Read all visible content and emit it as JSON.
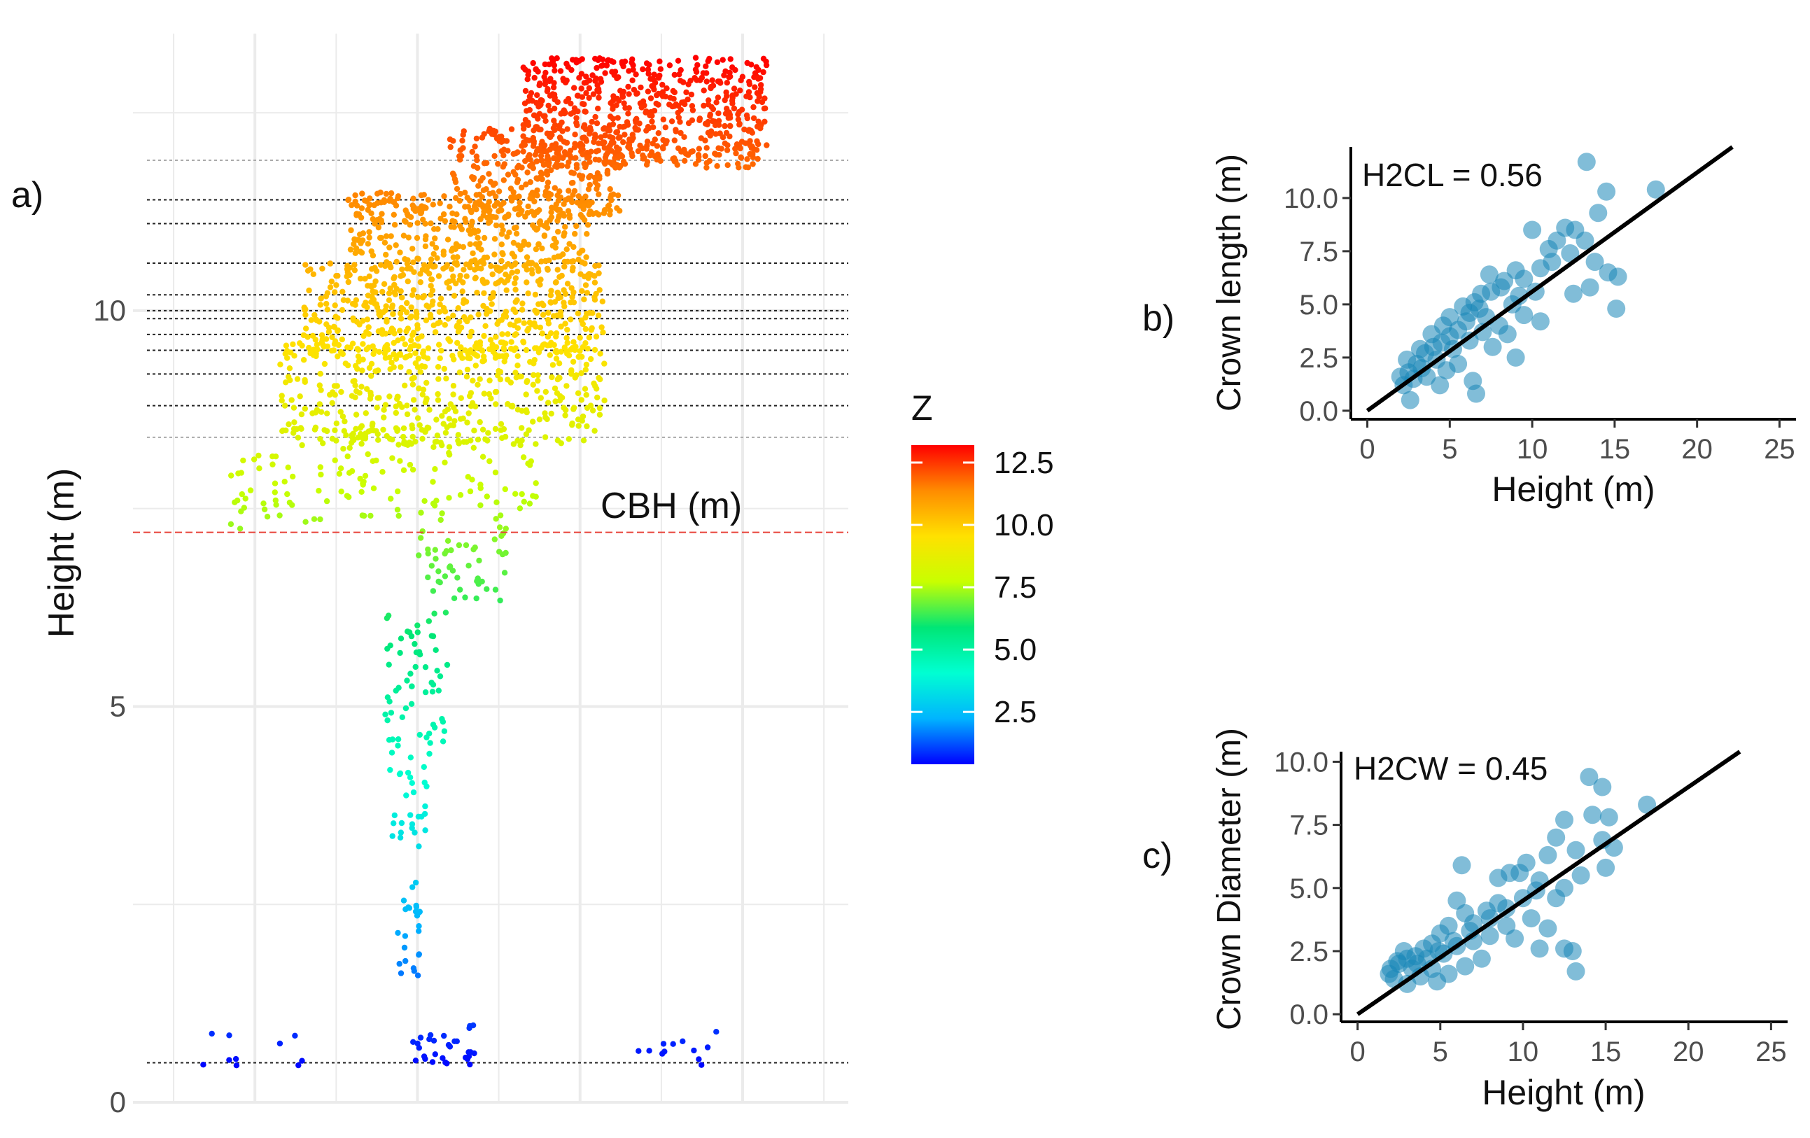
{
  "figure": {
    "panel_labels": {
      "a": "a)",
      "b": "b)",
      "c": "c)"
    }
  },
  "chart_data": [
    {
      "panel": "a",
      "type": "scatter",
      "ylabel": "Height (m)",
      "xlabel": "",
      "ylim": [
        0,
        13.5
      ],
      "yticks": [
        0,
        5,
        10
      ],
      "ytick_labels": [
        "0",
        "5",
        "10"
      ],
      "grid": true,
      "annotation": "CBH (m)",
      "cbh_line": 7.2,
      "layer_lines": [
        0.5,
        8.4,
        8.8,
        9.2,
        9.5,
        9.7,
        9.9,
        10.0,
        10.2,
        10.6,
        11.1,
        11.4,
        11.9
      ],
      "colorbar": {
        "title": "Z",
        "ticks": [
          2.5,
          5.0,
          7.5,
          10.0,
          12.5
        ],
        "tick_labels": [
          "2.5",
          "5.0",
          "7.5",
          "10.0",
          "12.5"
        ],
        "range": [
          0.4,
          13.2
        ],
        "colors": [
          "#0000ff",
          "#00b4ff",
          "#00ffd2",
          "#00e676",
          "#c8ff00",
          "#ffe100",
          "#ff8c00",
          "#ff0000"
        ]
      },
      "point_clusters": [
        {
          "x": [
            0.85,
            2.1
          ],
          "y": [
            0.45,
            0.95
          ],
          "n": 10,
          "note": "ground"
        },
        {
          "x": [
            3.4,
            4.2
          ],
          "y": [
            0.45,
            1.0
          ],
          "n": 30
        },
        {
          "x": [
            6.2,
            7.3
          ],
          "y": [
            0.45,
            0.9
          ],
          "n": 12
        },
        {
          "x": [
            3.25,
            3.55
          ],
          "y": [
            1.6,
            2.8
          ],
          "n": 25
        },
        {
          "x": [
            3.15,
            3.65
          ],
          "y": [
            3.2,
            4.5
          ],
          "n": 30
        },
        {
          "x": [
            3.1,
            3.9
          ],
          "y": [
            4.5,
            6.2
          ],
          "n": 60
        },
        {
          "x": [
            3.5,
            4.6
          ],
          "y": [
            6.3,
            7.4
          ],
          "n": 50
        },
        {
          "x": [
            1.2,
            2.9
          ],
          "y": [
            7.2,
            8.2
          ],
          "n": 50
        },
        {
          "x": [
            2.3,
            5.0
          ],
          "y": [
            7.4,
            8.6
          ],
          "n": 90
        },
        {
          "x": [
            1.8,
            5.8
          ],
          "y": [
            8.3,
            9.6
          ],
          "n": 420
        },
        {
          "x": [
            2.1,
            5.8
          ],
          "y": [
            9.4,
            10.6
          ],
          "n": 480
        },
        {
          "x": [
            2.6,
            5.6
          ],
          "y": [
            10.5,
            11.5
          ],
          "n": 360
        },
        {
          "x": [
            3.9,
            6.0
          ],
          "y": [
            11.2,
            12.3
          ],
          "n": 280
        },
        {
          "x": [
            4.8,
            7.8
          ],
          "y": [
            11.8,
            13.2
          ],
          "n": 620
        }
      ]
    },
    {
      "panel": "b",
      "type": "scatter",
      "xlabel": "Height (m)",
      "ylabel": "Crown length (m)",
      "annotation": "H2CL = 0.56",
      "slope": 0.56,
      "xlim": [
        -1,
        26
      ],
      "ylim": [
        -0.4,
        12.4
      ],
      "xticks": [
        0,
        5,
        10,
        15,
        20,
        25
      ],
      "xtick_labels": [
        "0",
        "5",
        "10",
        "15",
        "20",
        "25"
      ],
      "yticks": [
        0.0,
        2.5,
        5.0,
        7.5,
        10.0
      ],
      "ytick_labels": [
        "0.0",
        "2.5",
        "5.0",
        "7.5",
        "10.0"
      ],
      "points": [
        [
          13.3,
          11.7
        ],
        [
          14.5,
          10.3
        ],
        [
          17.5,
          10.4
        ],
        [
          14.0,
          9.3
        ],
        [
          10.0,
          8.5
        ],
        [
          12.0,
          8.6
        ],
        [
          12.6,
          8.5
        ],
        [
          13.2,
          8.0
        ],
        [
          11.5,
          8.0
        ],
        [
          13.8,
          7.0
        ],
        [
          14.6,
          6.5
        ],
        [
          15.2,
          6.3
        ],
        [
          12.3,
          7.4
        ],
        [
          11.0,
          7.6
        ],
        [
          9.0,
          6.6
        ],
        [
          8.3,
          6.1
        ],
        [
          9.5,
          6.2
        ],
        [
          10.5,
          6.7
        ],
        [
          12.5,
          5.5
        ],
        [
          13.5,
          5.8
        ],
        [
          15.1,
          4.8
        ],
        [
          10.5,
          4.2
        ],
        [
          9.5,
          4.5
        ],
        [
          9.0,
          2.5
        ],
        [
          8.5,
          3.6
        ],
        [
          7.5,
          5.6
        ],
        [
          6.8,
          4.8
        ],
        [
          6.5,
          5.1
        ],
        [
          7.2,
          4.4
        ],
        [
          6.0,
          4.2
        ],
        [
          5.5,
          3.8
        ],
        [
          5.0,
          3.5
        ],
        [
          4.5,
          3.2
        ],
        [
          4.0,
          3.0
        ],
        [
          3.5,
          2.7
        ],
        [
          3.0,
          2.2
        ],
        [
          2.5,
          1.8
        ],
        [
          2.2,
          1.2
        ],
        [
          2.8,
          1.5
        ],
        [
          3.3,
          2.0
        ],
        [
          4.2,
          2.4
        ],
        [
          5.2,
          2.9
        ],
        [
          6.2,
          3.3
        ],
        [
          7.0,
          3.7
        ],
        [
          8.0,
          4.0
        ],
        [
          4.8,
          1.9
        ],
        [
          3.6,
          1.6
        ],
        [
          2.6,
          0.5
        ],
        [
          6.4,
          1.4
        ],
        [
          6.6,
          0.8
        ],
        [
          5.5,
          2.2
        ],
        [
          7.6,
          3.0
        ],
        [
          8.8,
          5.0
        ],
        [
          9.2,
          5.4
        ],
        [
          7.4,
          6.4
        ],
        [
          6.2,
          4.6
        ],
        [
          5.8,
          4.9
        ],
        [
          4.6,
          4.0
        ],
        [
          3.9,
          3.6
        ],
        [
          3.2,
          2.9
        ],
        [
          2.4,
          2.4
        ],
        [
          2.0,
          1.6
        ],
        [
          4.4,
          1.2
        ],
        [
          5.0,
          4.4
        ],
        [
          6.9,
          5.5
        ],
        [
          8.1,
          5.8
        ],
        [
          11.2,
          7.0
        ],
        [
          10.2,
          5.6
        ]
      ]
    },
    {
      "panel": "c",
      "type": "scatter",
      "xlabel": "Height (m)",
      "ylabel": "Crown Diameter (m)",
      "annotation": "H2CW = 0.45",
      "slope": 0.45,
      "xlim": [
        -1,
        26
      ],
      "ylim": [
        -0.3,
        10.4
      ],
      "xticks": [
        0,
        5,
        10,
        15,
        20,
        25
      ],
      "xtick_labels": [
        "0",
        "5",
        "10",
        "15",
        "20",
        "25"
      ],
      "yticks": [
        0.0,
        2.5,
        5.0,
        7.5,
        10.0
      ],
      "ytick_labels": [
        "0.0",
        "2.5",
        "5.0",
        "7.5",
        "10.0"
      ],
      "points": [
        [
          14.0,
          9.4
        ],
        [
          14.8,
          9.0
        ],
        [
          14.2,
          7.9
        ],
        [
          15.2,
          7.8
        ],
        [
          17.5,
          8.3
        ],
        [
          12.5,
          7.7
        ],
        [
          12.0,
          7.0
        ],
        [
          13.2,
          6.5
        ],
        [
          14.8,
          6.9
        ],
        [
          15.5,
          6.6
        ],
        [
          11.5,
          6.3
        ],
        [
          10.2,
          6.0
        ],
        [
          9.2,
          5.6
        ],
        [
          8.5,
          5.4
        ],
        [
          6.3,
          5.9
        ],
        [
          9.8,
          5.6
        ],
        [
          11.0,
          5.3
        ],
        [
          12.5,
          5.0
        ],
        [
          13.5,
          5.5
        ],
        [
          15.0,
          5.8
        ],
        [
          12.0,
          4.6
        ],
        [
          10.0,
          4.6
        ],
        [
          9.0,
          4.2
        ],
        [
          8.0,
          3.8
        ],
        [
          7.0,
          3.6
        ],
        [
          6.0,
          4.5
        ],
        [
          6.5,
          4.0
        ],
        [
          5.5,
          3.5
        ],
        [
          5.0,
          3.2
        ],
        [
          4.5,
          2.8
        ],
        [
          4.0,
          2.6
        ],
        [
          3.5,
          2.3
        ],
        [
          3.0,
          2.2
        ],
        [
          2.5,
          2.0
        ],
        [
          2.0,
          1.8
        ],
        [
          2.2,
          1.4
        ],
        [
          3.0,
          1.2
        ],
        [
          3.8,
          1.5
        ],
        [
          4.5,
          1.8
        ],
        [
          5.2,
          2.4
        ],
        [
          6.0,
          2.7
        ],
        [
          7.0,
          2.9
        ],
        [
          8.0,
          3.1
        ],
        [
          9.0,
          3.5
        ],
        [
          10.5,
          3.8
        ],
        [
          11.5,
          3.4
        ],
        [
          12.5,
          2.6
        ],
        [
          13.0,
          2.5
        ],
        [
          13.2,
          1.7
        ],
        [
          11.0,
          2.6
        ],
        [
          7.5,
          2.2
        ],
        [
          6.5,
          1.9
        ],
        [
          5.5,
          1.6
        ],
        [
          4.8,
          1.3
        ],
        [
          2.8,
          2.5
        ],
        [
          3.3,
          1.8
        ],
        [
          4.2,
          2.2
        ],
        [
          5.8,
          2.9
        ],
        [
          8.5,
          4.4
        ],
        [
          9.5,
          3.0
        ],
        [
          10.8,
          4.9
        ],
        [
          7.8,
          4.1
        ],
        [
          6.8,
          3.3
        ],
        [
          2.4,
          2.1
        ],
        [
          1.9,
          1.6
        ],
        [
          3.6,
          2.0
        ],
        [
          4.9,
          2.5
        ]
      ]
    }
  ]
}
